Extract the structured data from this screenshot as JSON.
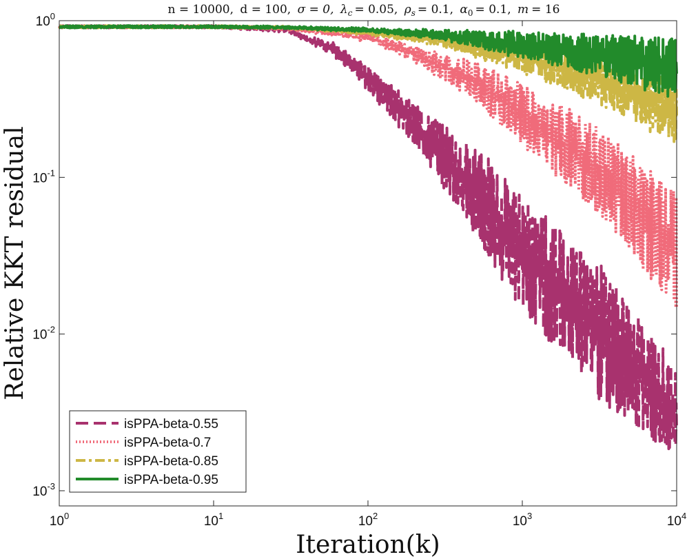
{
  "chart_data": {
    "type": "line",
    "title": "n = 10000, d = 100, σ = 0, λ_c = 0.05, ρ_s = 0.1, α_0 = 0.1, m = 16",
    "title_parts": {
      "n": "n = 10000,",
      "d": "d = 100,",
      "sigma": "σ = 0,",
      "lambda_sym": "λ",
      "lambda_sub": "c",
      "lambda_val": "= 0.05,",
      "rho_sym": "ρ",
      "rho_sub": "s",
      "rho_val": "= 0.1,",
      "alpha_sym": "α",
      "alpha_sub": "0",
      "alpha_val": "= 0.1,",
      "m_sym": "m",
      "m_val": "= 16"
    },
    "xlabel": "Iteration(k)",
    "ylabel": "Relative KKT residual",
    "xscale": "log",
    "yscale": "log",
    "xlim": [
      1,
      10000
    ],
    "ylim": [
      0.0008,
      1
    ],
    "x_ticks": [
      {
        "value": 1,
        "base": "10",
        "exp": "0"
      },
      {
        "value": 10,
        "base": "10",
        "exp": "1"
      },
      {
        "value": 100,
        "base": "10",
        "exp": "2"
      },
      {
        "value": 1000,
        "base": "10",
        "exp": "3"
      },
      {
        "value": 10000,
        "base": "10",
        "exp": "4"
      }
    ],
    "y_ticks": [
      {
        "value": 1,
        "base": "10",
        "exp": "0"
      },
      {
        "value": 0.1,
        "base": "10",
        "exp": "-1"
      },
      {
        "value": 0.01,
        "base": "10",
        "exp": "-2"
      },
      {
        "value": 0.001,
        "base": "10",
        "exp": "-3"
      }
    ],
    "legend_position": "bottom-left",
    "series": [
      {
        "name": "isPPA-beta-0.55",
        "color": "#a8326e",
        "style": "dashed",
        "upper": [
          [
            1,
            0.93
          ],
          [
            10,
            0.93
          ],
          [
            30,
            0.9
          ],
          [
            60,
            0.78
          ],
          [
            100,
            0.58
          ],
          [
            200,
            0.34
          ],
          [
            500,
            0.16
          ],
          [
            1000,
            0.075
          ],
          [
            3000,
            0.03
          ],
          [
            10000,
            0.0065
          ]
        ],
        "lower": [
          [
            1,
            0.9
          ],
          [
            10,
            0.9
          ],
          [
            30,
            0.83
          ],
          [
            60,
            0.55
          ],
          [
            100,
            0.32
          ],
          [
            200,
            0.14
          ],
          [
            500,
            0.04
          ],
          [
            1000,
            0.014
          ],
          [
            3000,
            0.004
          ],
          [
            10000,
            0.0015
          ]
        ]
      },
      {
        "name": "isPPA-beta-0.7",
        "color": "#f06b7a",
        "style": "dotted",
        "upper": [
          [
            1,
            0.93
          ],
          [
            10,
            0.93
          ],
          [
            30,
            0.91
          ],
          [
            100,
            0.85
          ],
          [
            200,
            0.72
          ],
          [
            500,
            0.55
          ],
          [
            1000,
            0.4
          ],
          [
            3000,
            0.22
          ],
          [
            10000,
            0.08
          ]
        ],
        "lower": [
          [
            1,
            0.9
          ],
          [
            10,
            0.9
          ],
          [
            30,
            0.87
          ],
          [
            100,
            0.72
          ],
          [
            200,
            0.52
          ],
          [
            500,
            0.3
          ],
          [
            1000,
            0.16
          ],
          [
            3000,
            0.06
          ],
          [
            10000,
            0.014
          ]
        ]
      },
      {
        "name": "isPPA-beta-0.85",
        "color": "#cdb745",
        "style": "dashdot",
        "upper": [
          [
            1,
            0.93
          ],
          [
            10,
            0.93
          ],
          [
            30,
            0.92
          ],
          [
            100,
            0.88
          ],
          [
            300,
            0.83
          ],
          [
            1000,
            0.72
          ],
          [
            3000,
            0.6
          ],
          [
            10000,
            0.45
          ]
        ],
        "lower": [
          [
            1,
            0.9
          ],
          [
            10,
            0.9
          ],
          [
            30,
            0.89
          ],
          [
            100,
            0.8
          ],
          [
            300,
            0.68
          ],
          [
            1000,
            0.47
          ],
          [
            3000,
            0.3
          ],
          [
            10000,
            0.16
          ]
        ]
      },
      {
        "name": "isPPA-beta-0.95",
        "color": "#228b2b",
        "style": "solid",
        "upper": [
          [
            1,
            0.93
          ],
          [
            10,
            0.93
          ],
          [
            30,
            0.92
          ],
          [
            100,
            0.9
          ],
          [
            300,
            0.88
          ],
          [
            1000,
            0.85
          ],
          [
            3000,
            0.82
          ],
          [
            10000,
            0.78
          ]
        ],
        "lower": [
          [
            1,
            0.9
          ],
          [
            10,
            0.9
          ],
          [
            30,
            0.89
          ],
          [
            100,
            0.84
          ],
          [
            300,
            0.75
          ],
          [
            1000,
            0.58
          ],
          [
            3000,
            0.45
          ],
          [
            10000,
            0.32
          ]
        ]
      }
    ]
  }
}
